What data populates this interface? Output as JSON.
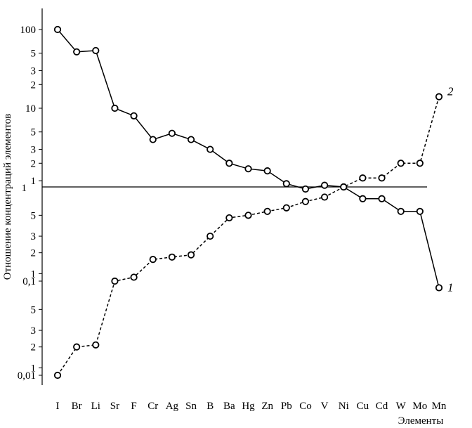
{
  "chart_data": {
    "type": "line",
    "xlabel": "Элементы",
    "ylabel": "Отношение концентраций элементов",
    "yscale": "log (two mirrored logarithmic scales about the ratio 1)",
    "categories": [
      "I",
      "Br",
      "Li",
      "Sr",
      "F",
      "Cr",
      "Ag",
      "Sn",
      "B",
      "Ba",
      "Hg",
      "Zn",
      "Pb",
      "Co",
      "V",
      "Ni",
      "Cu",
      "Cd",
      "W",
      "Mo",
      "Mn"
    ],
    "reference_line": {
      "value": 1,
      "label": "1"
    },
    "upper_ticks": [
      "100",
      "5",
      "3",
      "2",
      "10",
      "5",
      "3",
      "2",
      "1"
    ],
    "lower_ticks": [
      "5",
      "3",
      "2",
      "1",
      "0,1",
      "5",
      "3",
      "2",
      "1",
      "0,01"
    ],
    "series": [
      {
        "name": "1",
        "line_style": "solid",
        "values": [
          100,
          52,
          54,
          10,
          8,
          4,
          4.8,
          4,
          3,
          2,
          1.7,
          1.6,
          1.1,
          0.95,
          1.05,
          1,
          0.75,
          0.75,
          0.55,
          0.55,
          0.085
        ]
      },
      {
        "name": "2",
        "line_style": "dashed",
        "values": [
          0.01,
          0.02,
          0.021,
          0.1,
          0.11,
          0.17,
          0.18,
          0.19,
          0.3,
          0.47,
          0.5,
          0.55,
          0.6,
          0.7,
          0.78,
          1,
          1.3,
          1.3,
          2,
          2,
          14
        ]
      }
    ]
  }
}
